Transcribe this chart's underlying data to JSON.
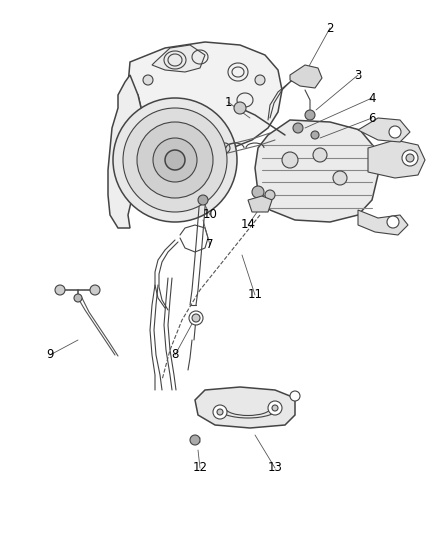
{
  "background_color": "#ffffff",
  "line_color": "#444444",
  "label_color": "#000000",
  "fig_width": 4.39,
  "fig_height": 5.33,
  "dpi": 100
}
